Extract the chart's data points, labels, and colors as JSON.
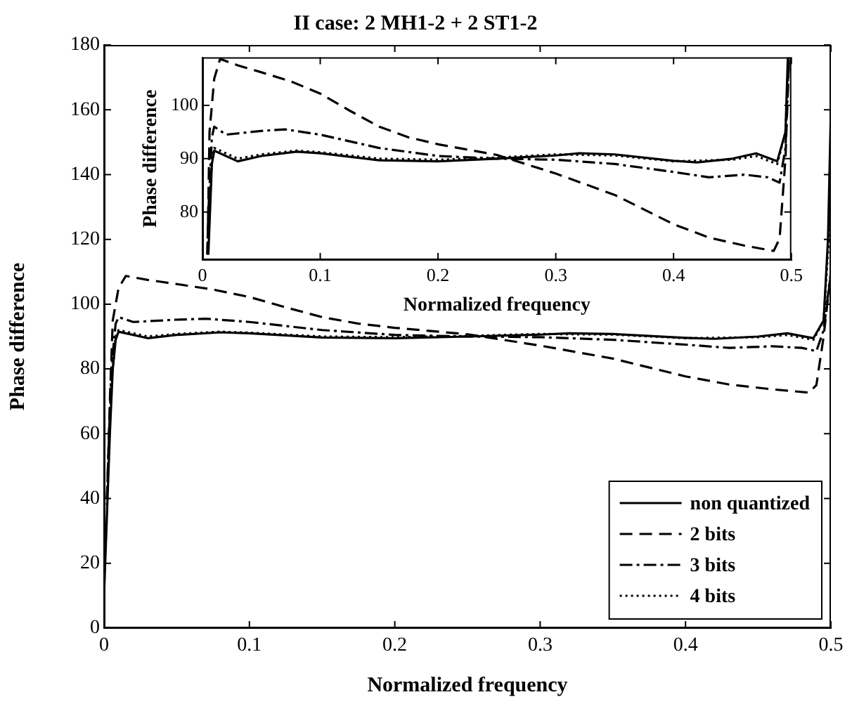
{
  "chart_data": [
    {
      "type": "line",
      "title": "II case: 2 MH1-2 + 2 ST1-2",
      "xlabel": "Normalized frequency",
      "ylabel": "Phase difference",
      "xlim": [
        0,
        0.5
      ],
      "xticks": [
        0,
        0.1,
        0.2,
        0.3,
        0.4,
        0.5
      ],
      "ylim": [
        0,
        180
      ],
      "yticks": [
        0,
        20,
        40,
        60,
        80,
        100,
        120,
        140,
        160,
        180
      ],
      "grid": false,
      "legend": "bottom right",
      "marker": "none",
      "series": [
        {
          "name": "non quantized",
          "color": "#000000",
          "line_style": "solid",
          "x": [
            0,
            0.002,
            0.004,
            0.006,
            0.008,
            0.01,
            0.015,
            0.03,
            0.05,
            0.08,
            0.1,
            0.15,
            0.2,
            0.25,
            0.3,
            0.32,
            0.35,
            0.4,
            0.42,
            0.45,
            0.47,
            0.488,
            0.495,
            0.498,
            0.5
          ],
          "values": [
            10,
            35,
            60,
            80,
            89,
            91.5,
            91,
            89.5,
            90.5,
            91.3,
            91,
            89.7,
            89.5,
            90,
            90.6,
            91,
            90.8,
            89.6,
            89.3,
            90,
            91,
            89.5,
            95,
            120,
            160
          ]
        },
        {
          "name": "2 bits",
          "color": "#000000",
          "line_style": "dashed",
          "x": [
            0.002,
            0.004,
            0.006,
            0.01,
            0.015,
            0.03,
            0.05,
            0.075,
            0.1,
            0.125,
            0.15,
            0.175,
            0.2,
            0.25,
            0.3,
            0.35,
            0.4,
            0.43,
            0.46,
            0.485,
            0.49,
            0.495,
            0.5
          ],
          "values": [
            40,
            70,
            95,
            105,
            108.7,
            107.5,
            106.2,
            104.5,
            102.2,
            99,
            96,
            94,
            92.7,
            90.7,
            87.2,
            83.2,
            77.7,
            75.2,
            73.7,
            72.7,
            75,
            90,
            110
          ]
        },
        {
          "name": "3 bits",
          "color": "#000000",
          "line_style": "dashdot",
          "x": [
            0.002,
            0.005,
            0.008,
            0.01,
            0.02,
            0.05,
            0.07,
            0.1,
            0.15,
            0.2,
            0.25,
            0.3,
            0.35,
            0.4,
            0.43,
            0.46,
            0.48,
            0.49,
            0.495,
            0.5
          ],
          "values": [
            40,
            80,
            94,
            96,
            94.5,
            95.2,
            95.5,
            94.5,
            92,
            90.5,
            90,
            89.8,
            89,
            87.5,
            86.5,
            87,
            86.5,
            85.5,
            92,
            110
          ]
        },
        {
          "name": "4 bits",
          "color": "#000000",
          "line_style": "dotted",
          "x": [
            0.002,
            0.005,
            0.008,
            0.01,
            0.02,
            0.03,
            0.05,
            0.08,
            0.1,
            0.15,
            0.2,
            0.25,
            0.3,
            0.35,
            0.4,
            0.45,
            0.47,
            0.488,
            0.495,
            0.5
          ],
          "values": [
            38,
            75,
            90,
            92,
            91,
            90,
            90.8,
            91.5,
            91.2,
            90,
            89.8,
            90.2,
            90.8,
            90.6,
            89.5,
            89.8,
            90.5,
            89,
            95,
            130
          ]
        }
      ]
    },
    {
      "type": "line",
      "xlabel": "Normalized frequency",
      "ylabel": "Phase difference",
      "xlim": [
        0,
        0.5
      ],
      "xticks": [
        0,
        0.1,
        0.2,
        0.3,
        0.4,
        0.5
      ],
      "ylim": [
        71,
        109
      ],
      "yticks": [
        80,
        90,
        100
      ],
      "grid": false,
      "marker": "none",
      "series": [
        {
          "color": "#000000",
          "line_style": "solid",
          "x": [
            0.005,
            0.008,
            0.01,
            0.015,
            0.03,
            0.05,
            0.08,
            0.1,
            0.15,
            0.2,
            0.25,
            0.3,
            0.32,
            0.35,
            0.4,
            0.42,
            0.45,
            0.47,
            0.488,
            0.495,
            0.497
          ],
          "values": [
            72,
            89,
            91.5,
            91,
            89.5,
            90.5,
            91.3,
            91,
            89.7,
            89.5,
            90,
            90.6,
            91,
            90.8,
            89.6,
            89.3,
            90,
            91,
            89.5,
            95,
            109
          ]
        },
        {
          "color": "#000000",
          "line_style": "dashed",
          "x": [
            0.0045,
            0.006,
            0.01,
            0.015,
            0.03,
            0.05,
            0.075,
            0.1,
            0.125,
            0.15,
            0.175,
            0.2,
            0.25,
            0.3,
            0.35,
            0.4,
            0.43,
            0.46,
            0.485,
            0.49,
            0.495,
            0.498
          ],
          "values": [
            75,
            95,
            105,
            108.7,
            107.5,
            106.2,
            104.5,
            102.2,
            99,
            96,
            94,
            92.7,
            90.7,
            87.2,
            83.2,
            77.7,
            75.2,
            73.7,
            72.7,
            75,
            90,
            109
          ]
        },
        {
          "color": "#000000",
          "line_style": "dashdot",
          "x": [
            0.004,
            0.005,
            0.008,
            0.01,
            0.02,
            0.05,
            0.07,
            0.1,
            0.15,
            0.2,
            0.25,
            0.3,
            0.35,
            0.4,
            0.43,
            0.46,
            0.48,
            0.49,
            0.495,
            0.498
          ],
          "values": [
            72,
            80,
            94,
            96,
            94.5,
            95.2,
            95.5,
            94.5,
            92,
            90.5,
            90,
            89.8,
            89,
            87.5,
            86.5,
            87,
            86.5,
            85.5,
            92,
            109
          ]
        },
        {
          "color": "#000000",
          "line_style": "dotted",
          "x": [
            0.0045,
            0.005,
            0.008,
            0.01,
            0.02,
            0.03,
            0.05,
            0.08,
            0.1,
            0.15,
            0.2,
            0.25,
            0.3,
            0.35,
            0.4,
            0.45,
            0.47,
            0.488,
            0.495,
            0.498
          ],
          "values": [
            72,
            75,
            90,
            92,
            91,
            90,
            90.8,
            91.5,
            91.2,
            90,
            89.8,
            90.2,
            90.8,
            90.6,
            89.5,
            89.8,
            90.5,
            89,
            95,
            109
          ]
        }
      ]
    }
  ]
}
